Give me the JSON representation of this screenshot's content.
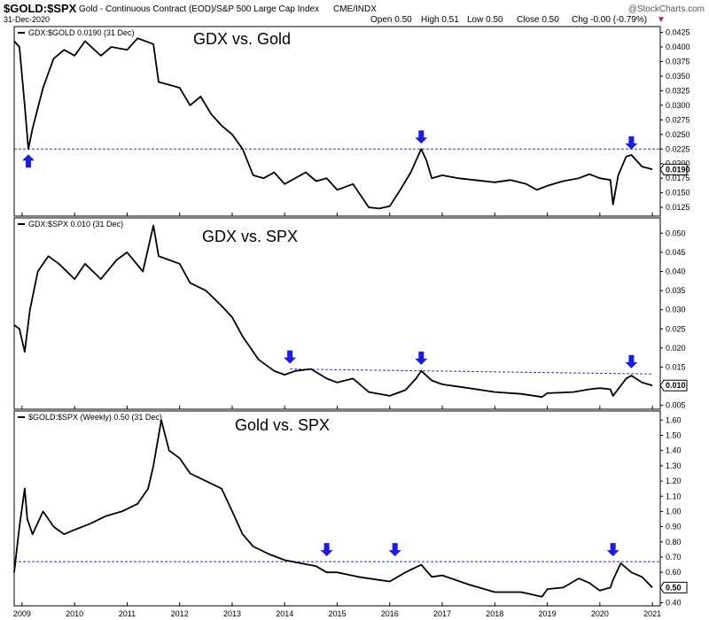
{
  "header": {
    "symbol": "$GOLD:$SPX",
    "description": "Gold - Continuous Contract (EOD)/S&P 500 Large Cap Index",
    "exchange": "CME/INDX",
    "date": "31-Dec-2020",
    "open": "Open 0.50",
    "high": "High 0.51",
    "low": "Low 0.50",
    "close": "Close 0.50",
    "change": "Chg -0.00 (-0.79%)",
    "change_marker": "▼",
    "brand": "@StockCharts.com"
  },
  "colors": {
    "line": "#000000",
    "arrow": "#1a1aee",
    "reference_line": "#2a2acc",
    "marker_red": "#cc0000",
    "grid": "#dddddd"
  },
  "chart_data": [
    {
      "type": "line",
      "panel_label": "GDX:$GOLD 0.0190 (31 Dec)",
      "annotation": "GDX vs. Gold",
      "last_value_label": "0.0190",
      "ylim": [
        0.011,
        0.0435
      ],
      "y_ticks": [
        "0.0425",
        "0.0400",
        "0.0375",
        "0.0350",
        "0.0325",
        "0.0300",
        "0.0275",
        "0.0250",
        "0.0225",
        "0.0200",
        "0.0175",
        "0.0150",
        "0.0125"
      ],
      "y_tick_values": [
        0.0425,
        0.04,
        0.0375,
        0.035,
        0.0325,
        0.03,
        0.0275,
        0.025,
        0.0225,
        0.02,
        0.0175,
        0.015,
        0.0125
      ],
      "reference_line": 0.0225,
      "series": [
        {
          "x": [
            2008.85,
            2008.95,
            2009.05,
            2009.12,
            2009.2,
            2009.4,
            2009.6,
            2009.8,
            2010.0,
            2010.2,
            2010.5,
            2010.7,
            2011.0,
            2011.2,
            2011.5,
            2011.6,
            2011.8,
            2012.0,
            2012.2,
            2012.4,
            2012.6,
            2012.8,
            2013.0,
            2013.2,
            2013.4,
            2013.6,
            2013.8,
            2014.0,
            2014.2,
            2014.4,
            2014.6,
            2014.8,
            2015.0,
            2015.3,
            2015.6,
            2015.8,
            2016.0,
            2016.2,
            2016.4,
            2016.6,
            2016.7,
            2016.8,
            2017.0,
            2017.3,
            2017.6,
            2018.0,
            2018.3,
            2018.6,
            2018.8,
            2019.0,
            2019.3,
            2019.6,
            2019.8,
            2020.0,
            2020.2,
            2020.25,
            2020.35,
            2020.5,
            2020.6,
            2020.8,
            2021.0
          ],
          "y": [
            0.041,
            0.04,
            0.03,
            0.0225,
            0.026,
            0.033,
            0.038,
            0.0395,
            0.0385,
            0.041,
            0.0385,
            0.04,
            0.0395,
            0.0415,
            0.0405,
            0.034,
            0.0335,
            0.033,
            0.03,
            0.0315,
            0.0285,
            0.0265,
            0.025,
            0.0225,
            0.018,
            0.0175,
            0.0185,
            0.0165,
            0.0175,
            0.0185,
            0.017,
            0.0175,
            0.0155,
            0.0165,
            0.0125,
            0.0123,
            0.0127,
            0.0155,
            0.0185,
            0.0225,
            0.0205,
            0.0175,
            0.018,
            0.0175,
            0.0172,
            0.0168,
            0.0172,
            0.0165,
            0.0155,
            0.0162,
            0.017,
            0.0175,
            0.0182,
            0.0175,
            0.0172,
            0.013,
            0.018,
            0.0212,
            0.0215,
            0.0195,
            0.019
          ]
        }
      ],
      "arrows": [
        {
          "x": 2009.12,
          "y": 0.0225,
          "direction": "up"
        },
        {
          "x": 2016.6,
          "y": 0.0225,
          "direction": "down"
        },
        {
          "x": 2020.6,
          "y": 0.0215,
          "direction": "down"
        }
      ]
    },
    {
      "type": "line",
      "panel_label": "GDX:$SPX 0.010 (31 Dec)",
      "annotation": "GDX vs. SPX",
      "last_value_label": "0.010",
      "ylim": [
        0.004,
        0.054
      ],
      "y_ticks": [
        "0.050",
        "0.045",
        "0.040",
        "0.035",
        "0.030",
        "0.025",
        "0.020",
        "0.015",
        "0.010",
        "0.005"
      ],
      "y_tick_values": [
        0.05,
        0.045,
        0.04,
        0.035,
        0.03,
        0.025,
        0.02,
        0.015,
        0.01,
        0.005
      ],
      "reference_line_points": [
        [
          2014.1,
          0.0145
        ],
        [
          2021.0,
          0.0132
        ]
      ],
      "series": [
        {
          "x": [
            2008.85,
            2008.95,
            2009.05,
            2009.15,
            2009.3,
            2009.5,
            2009.7,
            2010.0,
            2010.2,
            2010.5,
            2010.8,
            2011.0,
            2011.3,
            2011.5,
            2011.6,
            2011.8,
            2012.0,
            2012.2,
            2012.5,
            2012.8,
            2013.0,
            2013.2,
            2013.5,
            2013.8,
            2014.0,
            2014.2,
            2014.5,
            2014.8,
            2015.0,
            2015.3,
            2015.6,
            2015.8,
            2016.0,
            2016.3,
            2016.5,
            2016.6,
            2016.8,
            2017.0,
            2017.5,
            2018.0,
            2018.5,
            2018.9,
            2019.0,
            2019.5,
            2019.8,
            2020.0,
            2020.2,
            2020.25,
            2020.5,
            2020.6,
            2020.8,
            2021.0
          ],
          "y": [
            0.026,
            0.025,
            0.019,
            0.03,
            0.04,
            0.044,
            0.042,
            0.038,
            0.042,
            0.038,
            0.043,
            0.045,
            0.04,
            0.052,
            0.044,
            0.043,
            0.042,
            0.037,
            0.035,
            0.031,
            0.028,
            0.023,
            0.017,
            0.014,
            0.013,
            0.014,
            0.0145,
            0.012,
            0.011,
            0.012,
            0.0085,
            0.008,
            0.0075,
            0.009,
            0.012,
            0.014,
            0.0115,
            0.0105,
            0.0095,
            0.0085,
            0.008,
            0.0072,
            0.0082,
            0.0085,
            0.0092,
            0.0095,
            0.0092,
            0.0075,
            0.012,
            0.0128,
            0.011,
            0.0102
          ]
        }
      ],
      "arrows": [
        {
          "x": 2014.1,
          "y": 0.0145,
          "direction": "down"
        },
        {
          "x": 2016.6,
          "y": 0.0142,
          "direction": "down"
        },
        {
          "x": 2020.6,
          "y": 0.0133,
          "direction": "down"
        }
      ]
    },
    {
      "type": "line",
      "panel_label": "$GOLD:$SPX (Weekly) 0.50 (31 Dec)",
      "annotation": "Gold vs. SPX",
      "last_value_label": "0.50",
      "ylim": [
        0.38,
        1.66
      ],
      "y_ticks": [
        "1.60",
        "1.50",
        "1.40",
        "1.30",
        "1.20",
        "1.10",
        "1.00",
        "0.90",
        "0.80",
        "0.70",
        "0.60",
        "0.50",
        "0.40"
      ],
      "y_tick_values": [
        1.6,
        1.5,
        1.4,
        1.3,
        1.2,
        1.1,
        1.0,
        0.9,
        0.8,
        0.7,
        0.6,
        0.5,
        0.4
      ],
      "reference_line": 0.67,
      "series": [
        {
          "x": [
            2008.85,
            2008.95,
            2009.05,
            2009.1,
            2009.2,
            2009.4,
            2009.6,
            2009.8,
            2010.0,
            2010.3,
            2010.6,
            2010.9,
            2011.2,
            2011.4,
            2011.5,
            2011.65,
            2011.8,
            2012.0,
            2012.2,
            2012.5,
            2012.8,
            2013.0,
            2013.2,
            2013.4,
            2013.7,
            2014.0,
            2014.3,
            2014.6,
            2014.8,
            2015.0,
            2015.4,
            2015.8,
            2016.0,
            2016.3,
            2016.6,
            2016.8,
            2017.0,
            2017.5,
            2018.0,
            2018.5,
            2018.9,
            2019.0,
            2019.3,
            2019.6,
            2019.8,
            2020.0,
            2020.2,
            2020.25,
            2020.4,
            2020.6,
            2020.8,
            2021.0
          ],
          "y": [
            0.6,
            0.9,
            1.15,
            0.95,
            0.85,
            1.0,
            0.9,
            0.85,
            0.88,
            0.92,
            0.97,
            1.0,
            1.05,
            1.15,
            1.3,
            1.6,
            1.4,
            1.35,
            1.25,
            1.2,
            1.15,
            1.0,
            0.85,
            0.77,
            0.72,
            0.68,
            0.66,
            0.64,
            0.6,
            0.6,
            0.57,
            0.55,
            0.54,
            0.6,
            0.65,
            0.57,
            0.58,
            0.52,
            0.47,
            0.47,
            0.44,
            0.49,
            0.5,
            0.56,
            0.53,
            0.48,
            0.5,
            0.55,
            0.66,
            0.6,
            0.57,
            0.5
          ]
        }
      ],
      "arrows": [
        {
          "x": 2014.8,
          "y": 0.67,
          "direction": "down"
        },
        {
          "x": 2016.1,
          "y": 0.67,
          "direction": "down"
        },
        {
          "x": 2020.25,
          "y": 0.67,
          "direction": "down"
        }
      ]
    }
  ],
  "x_axis": {
    "xlim": [
      2008.85,
      2021.15
    ],
    "ticks": [
      2009,
      2010,
      2011,
      2012,
      2013,
      2014,
      2015,
      2016,
      2017,
      2018,
      2019,
      2020,
      2021
    ],
    "tick_labels": [
      "2009",
      "2010",
      "2011",
      "2012",
      "2013",
      "2014",
      "2015",
      "2016",
      "2017",
      "2018",
      "2019",
      "2020",
      "2021"
    ]
  }
}
